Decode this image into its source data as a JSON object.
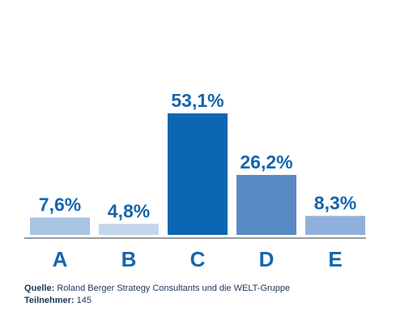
{
  "chart_data": {
    "type": "bar",
    "categories": [
      "A",
      "B",
      "C",
      "D",
      "E"
    ],
    "values": [
      7.6,
      4.8,
      53.1,
      26.2,
      8.3
    ],
    "value_labels": [
      "7,6%",
      "4,8%",
      "53,1%",
      "26,2%",
      "8,3%"
    ],
    "ylim": [
      0,
      60
    ],
    "grid": false,
    "bar_colors": [
      "#a9c3e3",
      "#c2d5ec",
      "#0b67b2",
      "#5a8ac6",
      "#8fb0dc"
    ],
    "label_color": "#1665ad",
    "axis_color": "#7a7a7a"
  },
  "footer": {
    "source_label": "Quelle:",
    "source_text": " Roland Berger Strategy Consultants und die WELT-Gruppe",
    "participants_label": "Teilnehmer:",
    "participants_text": " 145"
  }
}
